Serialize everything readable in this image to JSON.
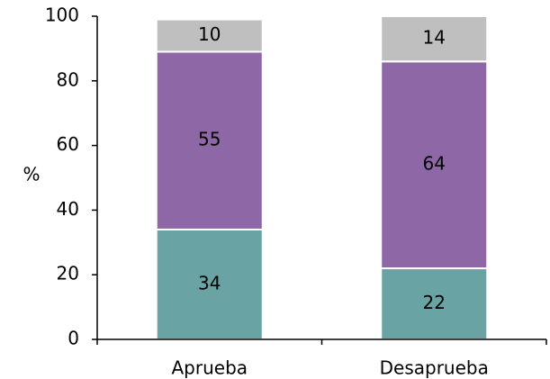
{
  "chart_data": {
    "type": "stacked_bar",
    "y_label": "%",
    "categories": [
      "Aprueba",
      "Desaprueba"
    ],
    "series": [
      {
        "color": "#6aa3a3",
        "values": [
          34,
          22
        ]
      },
      {
        "color": "#8e67a6",
        "values": [
          55,
          64
        ]
      },
      {
        "color": "#bfbfbf",
        "values": [
          10,
          14
        ]
      }
    ],
    "ylim": [
      0,
      100
    ],
    "yticks": [
      0,
      20,
      40,
      60,
      80,
      100
    ]
  }
}
